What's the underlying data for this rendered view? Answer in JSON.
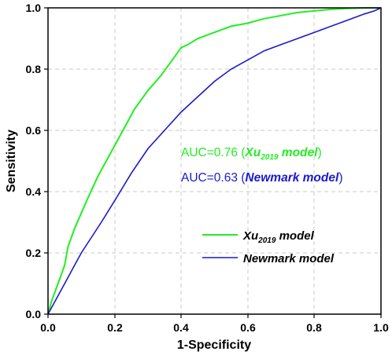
{
  "chart_data": {
    "type": "line",
    "xlabel": "1-Specificity",
    "ylabel": "Sensitivity",
    "xlim": [
      0.0,
      1.0
    ],
    "ylim": [
      0.0,
      1.0
    ],
    "x_ticks": [
      "0.0",
      "0.2",
      "0.4",
      "0.6",
      "0.8",
      "1.0"
    ],
    "y_ticks": [
      "0.0",
      "0.2",
      "0.4",
      "0.6",
      "0.8",
      "1.0"
    ],
    "grid": true,
    "legend_position": "lower-right",
    "series": [
      {
        "name_base": "Xu",
        "name_sub": "2019",
        "name_tail": " model",
        "color": "#22ee22",
        "x": [
          0.0,
          0.01,
          0.03,
          0.05,
          0.06,
          0.08,
          0.1,
          0.12,
          0.15,
          0.18,
          0.2,
          0.23,
          0.26,
          0.3,
          0.34,
          0.38,
          0.4,
          0.42,
          0.45,
          0.5,
          0.55,
          0.6,
          0.65,
          0.7,
          0.75,
          0.8,
          0.85,
          0.9,
          0.95,
          1.0
        ],
        "y": [
          0.0,
          0.04,
          0.1,
          0.16,
          0.22,
          0.28,
          0.33,
          0.38,
          0.45,
          0.51,
          0.55,
          0.61,
          0.67,
          0.73,
          0.78,
          0.84,
          0.87,
          0.88,
          0.9,
          0.92,
          0.94,
          0.95,
          0.965,
          0.975,
          0.985,
          0.99,
          0.995,
          0.998,
          1.0,
          1.0
        ]
      },
      {
        "name": "Newmark model",
        "color": "#1a1acc",
        "x": [
          0.0,
          0.03,
          0.05,
          0.08,
          0.1,
          0.13,
          0.16,
          0.2,
          0.25,
          0.3,
          0.35,
          0.4,
          0.45,
          0.5,
          0.55,
          0.6,
          0.65,
          0.7,
          0.75,
          0.8,
          0.85,
          0.9,
          0.95,
          0.98,
          1.0
        ],
        "y": [
          0.0,
          0.06,
          0.1,
          0.16,
          0.2,
          0.25,
          0.3,
          0.37,
          0.46,
          0.54,
          0.6,
          0.66,
          0.71,
          0.76,
          0.8,
          0.83,
          0.86,
          0.88,
          0.9,
          0.92,
          0.94,
          0.96,
          0.98,
          0.99,
          1.0
        ]
      }
    ],
    "annotations": [
      {
        "prefix": "AUC=0.76 (",
        "base": "Xu",
        "sub": "2019",
        "tail": " model",
        "suffix": ")",
        "color": "#22ee22"
      },
      {
        "prefix": "AUC=0.63 (",
        "base": "Newmark model",
        "sub": "",
        "tail": "",
        "suffix": ")",
        "color": "#1a1acc"
      }
    ]
  }
}
